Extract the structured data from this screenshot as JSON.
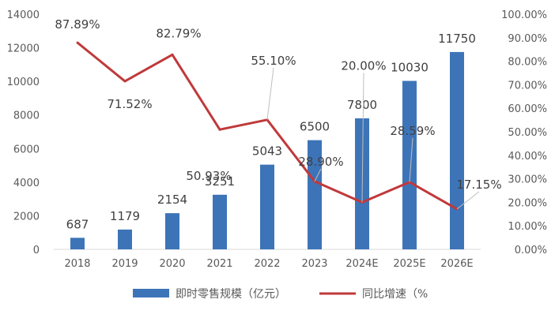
{
  "chart_data": {
    "type": "bar",
    "categories": [
      "2018",
      "2019",
      "2020",
      "2021",
      "2022",
      "2023",
      "2024E",
      "2025E",
      "2026E"
    ],
    "series": [
      {
        "name": "即时零售规模（亿元）",
        "type": "bar",
        "axis": "left",
        "values": [
          687,
          1179,
          2154,
          3251,
          5043,
          6500,
          7800,
          10030,
          11750
        ],
        "labels": [
          "687",
          "1179",
          "2154",
          "3251",
          "5043",
          "6500",
          "7800",
          "10030",
          "11750"
        ],
        "color": "#3D74B8"
      },
      {
        "name": "同比增速（%",
        "type": "line",
        "axis": "right",
        "values": [
          87.89,
          71.52,
          82.79,
          50.93,
          55.1,
          28.9,
          20.0,
          28.59,
          17.15
        ],
        "labels": [
          "87.89%",
          "71.52%",
          "82.79%",
          "50.93%",
          "55.10%",
          "28.90%",
          "20.00%",
          "28.59%",
          "17.15%"
        ],
        "color": "#C0393B"
      }
    ],
    "y_left": {
      "range": [
        0,
        14000
      ],
      "ticks": [
        "0",
        "2000",
        "4000",
        "6000",
        "8000",
        "10000",
        "12000",
        "14000"
      ]
    },
    "y_right": {
      "range": [
        0,
        100
      ],
      "ticks": [
        "0.00%",
        "10.00%",
        "20.00%",
        "30.00%",
        "40.00%",
        "50.00%",
        "60.00%",
        "70.00%",
        "80.00%",
        "90.00%",
        "100.00%"
      ]
    },
    "grid": false,
    "legend": "bottom"
  }
}
